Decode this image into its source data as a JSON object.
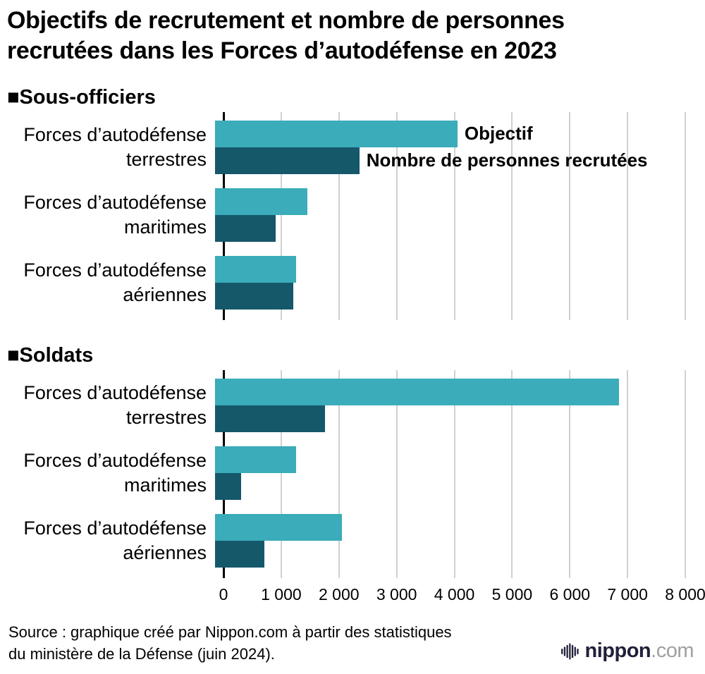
{
  "title": {
    "line1": "Objectifs de recrutement et nombre de personnes",
    "line2": "recrutées dans les Forces d’autodéfense en 2023"
  },
  "source": {
    "line1": "Source : graphique créé par Nippon.com à partir des statistiques",
    "line2": "du ministère de la Défense (juin 2024)."
  },
  "logo": {
    "name": "nippon",
    "tld": ".com"
  },
  "colors": {
    "objectif": "#3aacba",
    "recrutees": "#15586a",
    "gridline": "#cdd1d3",
    "axis": "#000000"
  },
  "chart_data": [
    {
      "type": "bar",
      "orientation": "horizontal",
      "section_title": "■Sous-officiers",
      "categories": [
        "Forces d’autodéfense terrestres",
        "Forces d’autodéfense maritimes",
        "Forces d’autodéfense aériennes"
      ],
      "category_label_lines": [
        [
          "Forces d’autodéfense",
          "terrestres"
        ],
        [
          "Forces d’autodéfense",
          "maritimes"
        ],
        [
          "Forces d’autodéfense",
          "aériennes"
        ]
      ],
      "series": [
        {
          "name": "Objectif",
          "color": "#3aacba",
          "values": [
            4200,
            1600,
            1400
          ]
        },
        {
          "name": "Nombre de personnes recrutées",
          "color": "#15586a",
          "values": [
            2500,
            1050,
            1350
          ]
        }
      ],
      "xlim": [
        0,
        8000
      ],
      "xticks": [
        0,
        1000,
        2000,
        3000,
        4000,
        5000,
        6000,
        7000,
        8000
      ],
      "xtick_labels": [
        "0",
        "1 000",
        "2 000",
        "3 000",
        "4 000",
        "5 000",
        "6 000",
        "7 000",
        "8 000"
      ],
      "grid": true,
      "legend_position": "inline-first-group",
      "show_legend_inline": true,
      "show_xtick_labels": false
    },
    {
      "type": "bar",
      "orientation": "horizontal",
      "section_title": "■Soldats",
      "categories": [
        "Forces d’autodéfense terrestres",
        "Forces d’autodéfense maritimes",
        "Forces d’autodéfense aériennes"
      ],
      "category_label_lines": [
        [
          "Forces d’autodéfense",
          "terrestres"
        ],
        [
          "Forces d’autodéfense",
          "maritimes"
        ],
        [
          "Forces d’autodéfense",
          "aériennes"
        ]
      ],
      "series": [
        {
          "name": "Objectif",
          "color": "#3aacba",
          "values": [
            7000,
            1400,
            2200
          ]
        },
        {
          "name": "Nombre de personnes recrutées",
          "color": "#15586a",
          "values": [
            1900,
            450,
            850
          ]
        }
      ],
      "xlim": [
        0,
        8000
      ],
      "xticks": [
        0,
        1000,
        2000,
        3000,
        4000,
        5000,
        6000,
        7000,
        8000
      ],
      "xtick_labels": [
        "0",
        "1 000",
        "2 000",
        "3 000",
        "4 000",
        "5 000",
        "6 000",
        "7 000",
        "8 000"
      ],
      "grid": true,
      "legend_position": "none",
      "show_legend_inline": false,
      "show_xtick_labels": true
    }
  ]
}
